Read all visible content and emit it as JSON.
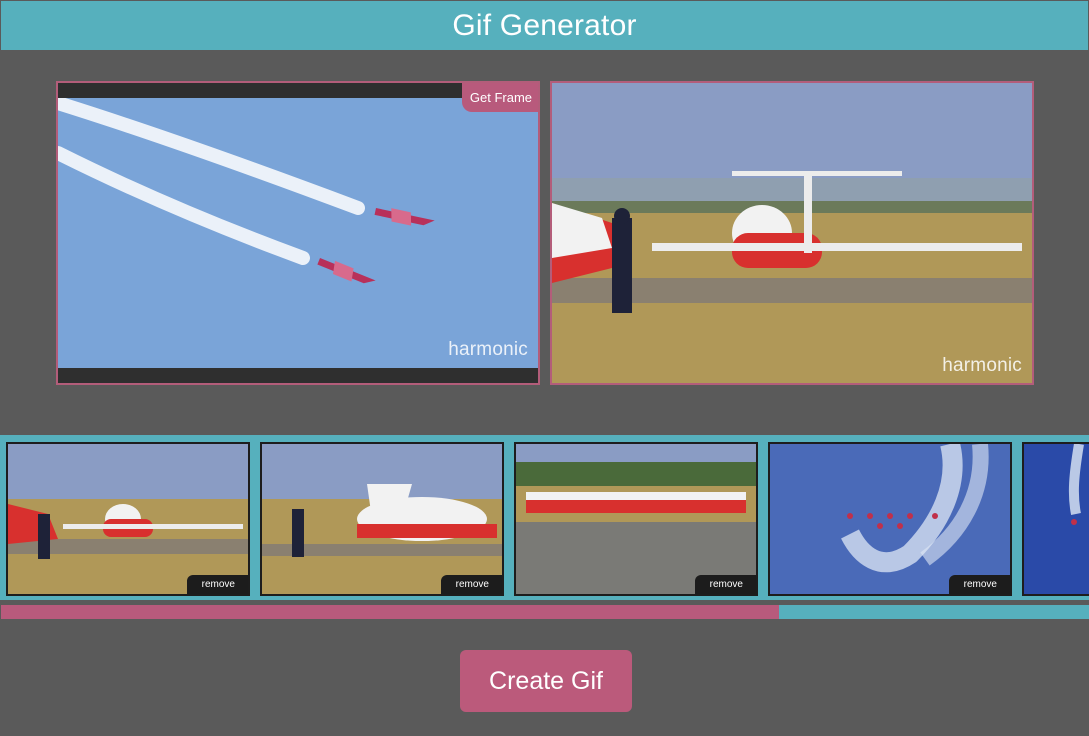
{
  "app": {
    "title": "Gif Generator"
  },
  "preview": {
    "get_frame_label": "Get Frame",
    "watermark": "harmonic"
  },
  "filmstrip": {
    "remove_label": "remove",
    "thumbnails": [
      {
        "alt": "pilot saluting beside Snowbirds jet"
      },
      {
        "alt": "pilot saluting beside jet number 3"
      },
      {
        "alt": "row of jets on runway"
      },
      {
        "alt": "formation flying with smoke trails"
      },
      {
        "alt": "single jet against blue sky"
      }
    ]
  },
  "progress": {
    "value": 0.715
  },
  "actions": {
    "create_label": "Create Gif"
  },
  "colors": {
    "header": "#56b0bd",
    "accent": "#b85a7c",
    "background": "#5a5a5a"
  }
}
